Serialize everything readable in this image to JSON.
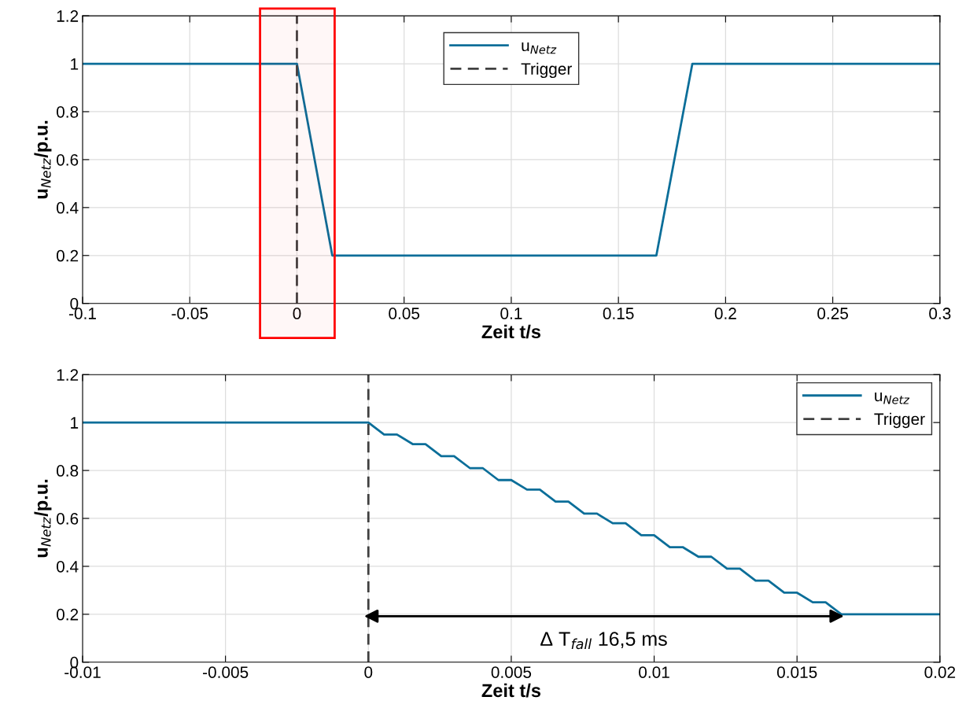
{
  "chart_data": [
    {
      "type": "line",
      "xlabel": "Zeit t/s",
      "ylabel": "u$_{Netz}$/p.u.",
      "xlim": [
        -0.1,
        0.3
      ],
      "xticks": [
        -0.1,
        -0.05,
        0,
        0.05,
        0.1,
        0.15,
        0.2,
        0.25,
        0.3
      ],
      "ylim": [
        0,
        1.2
      ],
      "yticks": [
        0,
        0.2,
        0.4,
        0.6,
        0.8,
        1,
        1.2
      ],
      "grid": true,
      "legend": "top",
      "marker": "none",
      "series": [
        {
          "name": "u$_{Netz}$",
          "color": "#0b6e99",
          "line_style": "solid",
          "x": [
            -0.1,
            0,
            0.0165,
            0.1677,
            0.1845,
            0.3
          ],
          "values": [
            1,
            1,
            0.2,
            0.2,
            1,
            1
          ]
        },
        {
          "name": "Trigger",
          "color": "#404040",
          "line_style": "dashed",
          "x": [
            0,
            0
          ],
          "values": [
            0,
            1.2
          ]
        }
      ],
      "bands": [
        {
          "axis": "x",
          "from": -0.0172,
          "to": 0.0176,
          "color": "#ff0000"
        }
      ]
    },
    {
      "type": "line",
      "xlabel": "Zeit t/s",
      "ylabel": "u$_{Netz}$/p.u.",
      "xlim": [
        -0.01,
        0.02
      ],
      "xticks": [
        -0.01,
        -0.005,
        0,
        0.005,
        0.01,
        0.015,
        0.02
      ],
      "ylim": [
        0,
        1.2
      ],
      "yticks": [
        0,
        0.2,
        0.4,
        0.6,
        0.8,
        1,
        1.2
      ],
      "grid": true,
      "legend": "top right",
      "marker": "none",
      "series": [
        {
          "name": "u$_{Netz}$",
          "color": "#0b6e99",
          "line_style": "solid",
          "x": [
            -0.01,
            0,
            0.00055,
            0.001,
            0.00155,
            0.002,
            0.00255,
            0.003,
            0.00355,
            0.004,
            0.00455,
            0.005,
            0.00555,
            0.006,
            0.00655,
            0.007,
            0.00755,
            0.008,
            0.00855,
            0.009,
            0.00955,
            0.01,
            0.01055,
            0.011,
            0.01155,
            0.012,
            0.01255,
            0.013,
            0.01355,
            0.014,
            0.01455,
            0.015,
            0.01555,
            0.016,
            0.01655,
            0.02
          ],
          "values": [
            1,
            1,
            0.95,
            0.95,
            0.91,
            0.91,
            0.86,
            0.86,
            0.81,
            0.81,
            0.76,
            0.76,
            0.72,
            0.72,
            0.67,
            0.67,
            0.62,
            0.62,
            0.58,
            0.58,
            0.53,
            0.53,
            0.48,
            0.48,
            0.44,
            0.44,
            0.39,
            0.39,
            0.34,
            0.34,
            0.29,
            0.29,
            0.25,
            0.25,
            0.2,
            0.2
          ]
        },
        {
          "name": "Trigger",
          "color": "#404040",
          "line_style": "dashed",
          "x": [
            0,
            0
          ],
          "values": [
            0,
            1.2
          ]
        }
      ],
      "annotations": [
        "Δ T$_{fall}$ 16,5 ms"
      ]
    }
  ]
}
